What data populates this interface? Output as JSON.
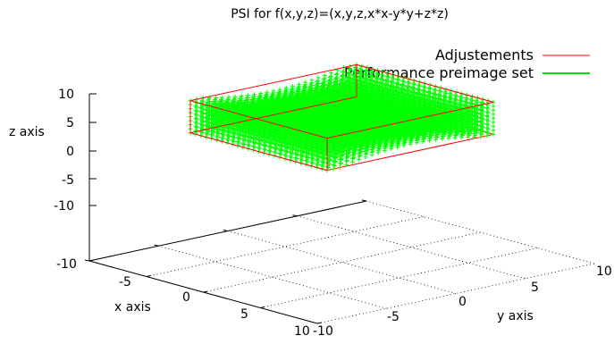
{
  "chart_data": {
    "type": "scatter",
    "title": "PSI for f(x,y,z)=(x,y,z,x*x-y*y+z*z)",
    "xlabel": "x axis",
    "ylabel": "y axis",
    "zlabel": "z axis",
    "xlim": [
      -10,
      10
    ],
    "ylim": [
      -10,
      10
    ],
    "zlim": [
      -10,
      10
    ],
    "xticks": [
      "-10",
      "-5",
      "0",
      "5",
      "10"
    ],
    "yticks": [
      "-10",
      "-5",
      "0",
      "5",
      "10"
    ],
    "zticks": [
      "10",
      "5",
      "0",
      "-5",
      "-10"
    ],
    "grid": true,
    "legend_position": "top-right",
    "series": [
      {
        "name": "Adjustements",
        "kind": "box",
        "color": "#ff0000",
        "bounds": {
          "x": [
            -6,
            6
          ],
          "y": [
            -6,
            6
          ],
          "z": [
            -6,
            6
          ]
        }
      },
      {
        "name": "Performance preimage set",
        "kind": "point-cloud",
        "color": "#00ff00",
        "description_shape": "hyperboloid-like solid within the box",
        "x_range": [
          -6,
          6
        ],
        "y_range": [
          -6,
          6
        ],
        "z_range": [
          -6,
          6
        ]
      }
    ]
  }
}
